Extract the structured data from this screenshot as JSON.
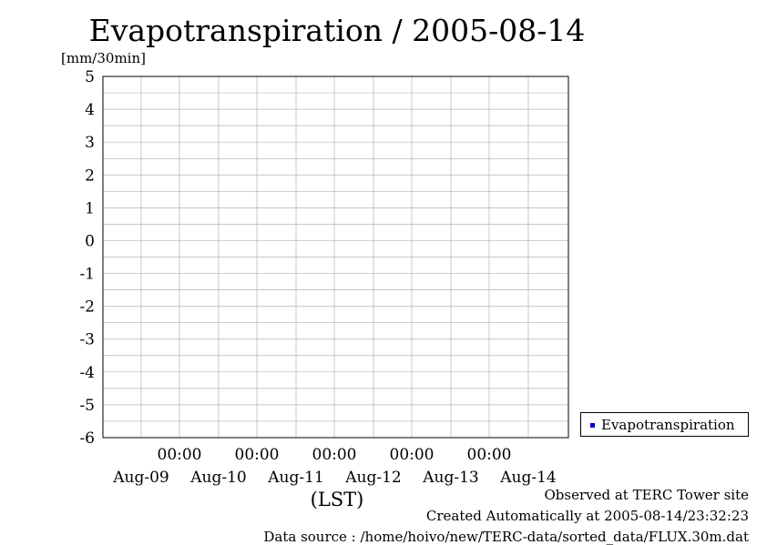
{
  "chart_data": {
    "type": "bar",
    "title": "Evapotranspiration / 2005-08-14",
    "ylabel": "[mm/30min]",
    "xlabel": "(LST)",
    "ylim": [
      -6,
      5
    ],
    "yticks": [
      "5",
      "4",
      "3",
      "2",
      "1",
      "0",
      "-1",
      "-2",
      "-3",
      "-4",
      "-5",
      "-6"
    ],
    "time_tick_labels": [
      "00:00",
      "00:00",
      "00:00",
      "00:00",
      "00:00"
    ],
    "day_labels": [
      "Aug-09",
      "Aug-10",
      "Aug-11",
      "Aug-12",
      "Aug-13",
      "Aug-14"
    ],
    "grid": true,
    "legend_position": "right-bottom",
    "series": [
      {
        "name": "Evapotranspiration",
        "color": "#0000cc",
        "x_start": "Aug-09 00:00",
        "interval": "30min",
        "values": [
          0,
          0,
          0,
          0,
          0,
          0,
          0,
          0,
          0,
          0,
          0,
          0,
          0,
          0,
          0,
          0,
          0,
          0,
          0,
          0,
          0,
          0,
          0,
          0,
          0,
          0,
          0,
          0,
          0,
          0,
          0,
          0,
          0,
          0,
          0,
          0,
          0,
          0,
          0,
          0,
          0,
          0,
          0,
          0,
          0,
          0,
          0,
          0,
          0,
          0,
          0,
          0,
          0,
          0,
          0,
          0,
          0,
          0,
          0,
          0,
          0,
          0,
          0,
          0,
          0,
          0,
          0,
          0,
          0,
          0,
          0,
          0,
          0,
          0,
          0,
          0,
          0,
          0,
          0,
          0,
          0,
          0,
          0,
          0,
          0,
          0,
          0,
          0,
          0,
          0,
          0,
          0,
          0,
          0,
          0,
          0,
          0,
          0,
          0,
          0,
          0,
          0,
          0,
          0,
          0,
          0,
          0,
          0,
          0,
          0,
          0,
          0,
          0,
          0,
          0,
          0,
          0,
          0,
          0,
          0,
          0,
          0,
          0,
          0,
          0,
          0,
          0,
          0,
          0,
          0,
          0,
          0,
          0,
          0,
          0,
          0,
          0,
          0,
          0,
          0,
          0,
          0,
          0,
          0,
          0,
          0,
          0,
          0,
          0,
          0,
          0,
          0,
          0,
          0,
          0,
          0,
          0,
          0,
          0,
          0,
          0,
          0,
          0,
          0,
          0,
          0,
          0,
          0,
          0,
          0,
          0,
          0,
          0,
          0,
          0,
          0,
          0,
          0,
          0,
          0,
          0,
          0,
          0,
          0,
          0,
          0,
          0,
          0,
          0,
          0,
          0,
          0,
          0,
          0,
          0,
          0,
          0,
          0,
          0,
          0,
          0,
          0,
          0,
          0,
          0,
          0,
          0,
          0,
          0,
          0,
          0,
          0,
          0,
          0,
          0,
          0,
          0,
          0,
          0,
          0,
          0,
          0,
          0,
          0,
          0,
          0,
          0,
          0,
          0,
          0,
          0,
          0,
          0,
          0,
          0,
          0,
          0,
          0,
          0,
          0,
          0,
          0,
          0,
          0,
          0,
          0,
          0,
          0,
          0,
          0,
          0,
          0,
          0,
          0,
          0,
          0,
          0,
          0,
          0,
          0,
          0,
          0,
          0,
          0,
          0,
          0,
          0,
          0,
          0,
          0,
          0,
          0,
          0,
          0,
          0,
          0,
          0,
          0,
          0,
          0,
          0,
          0,
          0,
          0,
          0,
          0,
          0,
          0,
          0,
          0,
          0,
          0,
          0,
          0,
          0,
          0,
          0,
          0
        ]
      }
    ]
  },
  "legend": {
    "label": "Evapotranspiration"
  },
  "footer": {
    "line1": "Observed at TERC Tower site",
    "line2": "Created Automatically at 2005-08-14/23:32:23",
    "line3": "Data source : /home/hoivo/new/TERC-data/sorted_data/FLUX.30m.dat"
  }
}
